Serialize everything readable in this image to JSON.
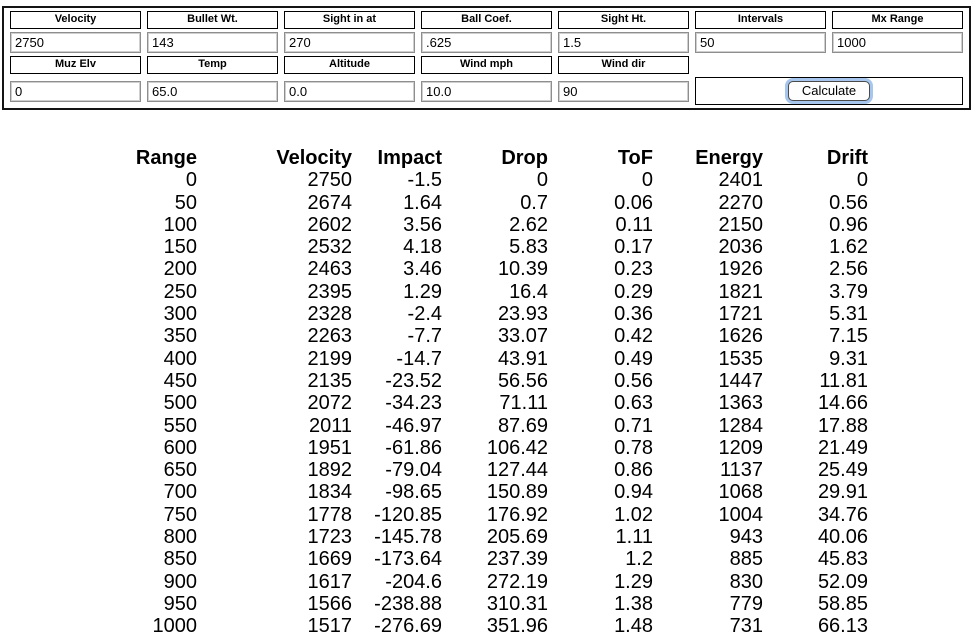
{
  "form": {
    "row1": [
      {
        "label": "Velocity",
        "value": "2750"
      },
      {
        "label": "Bullet Wt.",
        "value": "143"
      },
      {
        "label": "Sight in at",
        "value": "270"
      },
      {
        "label": "Ball Coef.",
        "value": ".625"
      },
      {
        "label": "Sight Ht.",
        "value": "1.5"
      },
      {
        "label": "Intervals",
        "value": "50"
      },
      {
        "label": "Mx Range",
        "value": "1000"
      }
    ],
    "row2": [
      {
        "label": "Muz Elv",
        "value": "0"
      },
      {
        "label": "Temp",
        "value": "65.0"
      },
      {
        "label": "Altitude",
        "value": "0.0"
      },
      {
        "label": "Wind mph",
        "value": "10.0"
      },
      {
        "label": "Wind dir",
        "value": "90"
      }
    ],
    "calculate_label": "Calculate"
  },
  "results": {
    "columns": [
      "Range",
      "Velocity",
      "Impact",
      "Drop",
      "ToF",
      "Energy",
      "Drift"
    ],
    "rows": [
      [
        "0",
        "2750",
        "-1.5",
        "0",
        "0",
        "2401",
        "0"
      ],
      [
        "50",
        "2674",
        "1.64",
        "0.7",
        "0.06",
        "2270",
        "0.56"
      ],
      [
        "100",
        "2602",
        "3.56",
        "2.62",
        "0.11",
        "2150",
        "0.96"
      ],
      [
        "150",
        "2532",
        "4.18",
        "5.83",
        "0.17",
        "2036",
        "1.62"
      ],
      [
        "200",
        "2463",
        "3.46",
        "10.39",
        "0.23",
        "1926",
        "2.56"
      ],
      [
        "250",
        "2395",
        "1.29",
        "16.4",
        "0.29",
        "1821",
        "3.79"
      ],
      [
        "300",
        "2328",
        "-2.4",
        "23.93",
        "0.36",
        "1721",
        "5.31"
      ],
      [
        "350",
        "2263",
        "-7.7",
        "33.07",
        "0.42",
        "1626",
        "7.15"
      ],
      [
        "400",
        "2199",
        "-14.7",
        "43.91",
        "0.49",
        "1535",
        "9.31"
      ],
      [
        "450",
        "2135",
        "-23.52",
        "56.56",
        "0.56",
        "1447",
        "11.81"
      ],
      [
        "500",
        "2072",
        "-34.23",
        "71.11",
        "0.63",
        "1363",
        "14.66"
      ],
      [
        "550",
        "2011",
        "-46.97",
        "87.69",
        "0.71",
        "1284",
        "17.88"
      ],
      [
        "600",
        "1951",
        "-61.86",
        "106.42",
        "0.78",
        "1209",
        "21.49"
      ],
      [
        "650",
        "1892",
        "-79.04",
        "127.44",
        "0.86",
        "1137",
        "25.49"
      ],
      [
        "700",
        "1834",
        "-98.65",
        "150.89",
        "0.94",
        "1068",
        "29.91"
      ],
      [
        "750",
        "1778",
        "-120.85",
        "176.92",
        "1.02",
        "1004",
        "34.76"
      ],
      [
        "800",
        "1723",
        "-145.78",
        "205.69",
        "1.11",
        "943",
        "40.06"
      ],
      [
        "850",
        "1669",
        "-173.64",
        "237.39",
        "1.2",
        "885",
        "45.83"
      ],
      [
        "900",
        "1617",
        "-204.6",
        "272.19",
        "1.29",
        "830",
        "52.09"
      ],
      [
        "950",
        "1566",
        "-238.88",
        "310.31",
        "1.38",
        "779",
        "58.85"
      ],
      [
        "1000",
        "1517",
        "-276.69",
        "351.96",
        "1.48",
        "731",
        "66.13"
      ]
    ]
  },
  "colors": {
    "text": "#000000",
    "form_border": "#141414",
    "cell_border": "#000000",
    "input_border": "#8e8e8e",
    "button_border": "#4a4a4a",
    "focus_ring": "#a6c6ee",
    "background": "#ffffff"
  }
}
